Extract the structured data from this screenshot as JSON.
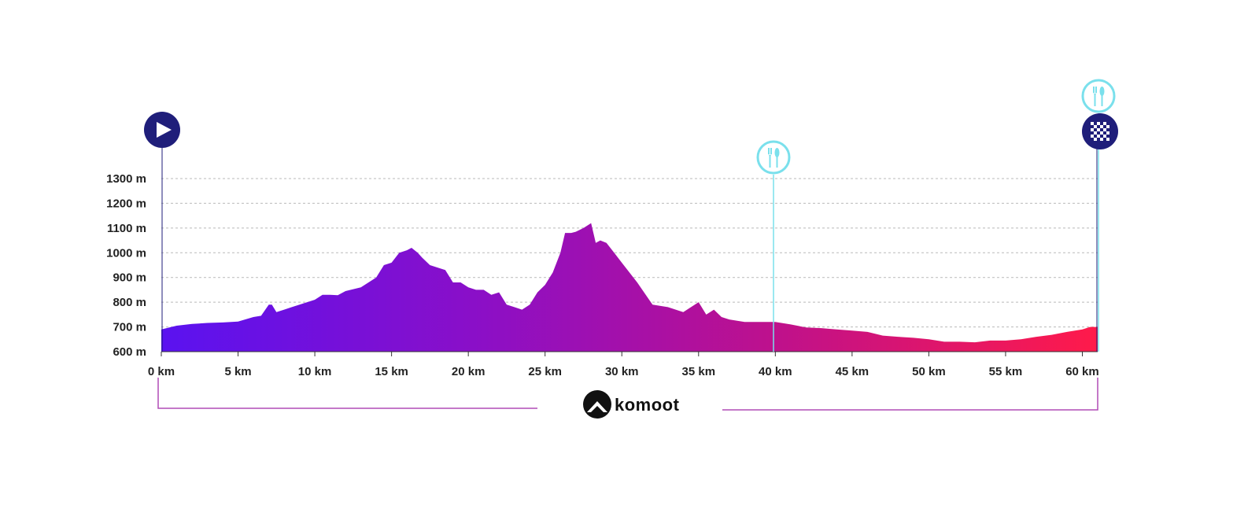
{
  "chart_data": {
    "type": "area",
    "xlabel": "",
    "ylabel": "",
    "x_unit": "km",
    "y_unit": "m",
    "xlim": [
      0,
      61
    ],
    "ylim": [
      600,
      1300
    ],
    "yticks": [
      600,
      700,
      800,
      900,
      1000,
      1100,
      1200,
      1300
    ],
    "ytick_labels": [
      "600 m",
      "700 m",
      "800 m",
      "900 m",
      "1000 m",
      "1100 m",
      "1200 m",
      "1300 m"
    ],
    "xticks": [
      0,
      5,
      10,
      15,
      20,
      25,
      30,
      35,
      40,
      45,
      50,
      55,
      60
    ],
    "xtick_labels": [
      "0 km",
      "5 km",
      "10 km",
      "15 km",
      "20 km",
      "25 km",
      "30 km",
      "35 km",
      "40 km",
      "45 km",
      "50 km",
      "55 km",
      "60 km"
    ],
    "grid": true,
    "gradient_colors": [
      "#5a12f0",
      "#8a0fc8",
      "#c0118a",
      "#ff1a4a"
    ],
    "x": [
      0,
      1,
      2,
      3,
      4,
      5,
      6,
      6.5,
      7,
      7.2,
      7.5,
      8,
      8.5,
      9,
      10,
      10.5,
      11,
      11.5,
      12,
      13,
      14,
      14.5,
      15,
      15.5,
      16,
      16.3,
      16.7,
      17,
      17.5,
      18,
      18.5,
      19,
      19.5,
      20,
      20.5,
      21,
      21.5,
      22,
      22.5,
      23,
      23.5,
      24,
      24.5,
      25,
      25.5,
      26,
      26.3,
      26.7,
      27,
      27.5,
      28,
      28.3,
      28.6,
      29,
      29.5,
      30,
      31,
      32,
      33,
      34,
      35,
      35.5,
      36,
      36.5,
      37,
      38,
      39,
      40,
      41,
      42,
      43,
      44,
      45,
      46,
      47,
      48,
      49,
      50,
      51,
      52,
      53,
      54,
      55,
      56,
      57,
      58,
      59,
      60,
      60.5,
      61
    ],
    "y": [
      690,
      705,
      712,
      716,
      718,
      722,
      740,
      745,
      790,
      790,
      760,
      770,
      780,
      790,
      810,
      830,
      830,
      828,
      845,
      860,
      900,
      950,
      960,
      1000,
      1010,
      1020,
      1000,
      980,
      950,
      940,
      930,
      880,
      880,
      860,
      850,
      850,
      830,
      840,
      790,
      780,
      770,
      790,
      840,
      870,
      920,
      1000,
      1080,
      1080,
      1085,
      1100,
      1120,
      1040,
      1050,
      1040,
      1000,
      960,
      880,
      790,
      780,
      760,
      800,
      750,
      770,
      740,
      730,
      720,
      720,
      720,
      710,
      698,
      695,
      690,
      685,
      680,
      665,
      660,
      656,
      650,
      640,
      640,
      638,
      645,
      645,
      650,
      660,
      668,
      680,
      690,
      700,
      700
    ]
  },
  "start_marker": {
    "icon": "play-icon",
    "color": "#1f1e7a"
  },
  "finish_marker": {
    "icon": "checkered-flag-icon",
    "color": "#1f1e7a"
  },
  "food_markers": [
    {
      "icon": "food-cutlery-icon",
      "km": 40,
      "color": "#7ae0ec"
    },
    {
      "icon": "food-cutlery-icon",
      "km": 61,
      "color": "#7ae0ec"
    }
  ],
  "brand": {
    "name": "komoot",
    "icon": "komoot-logo-icon",
    "line_color": "#b04bb5"
  }
}
